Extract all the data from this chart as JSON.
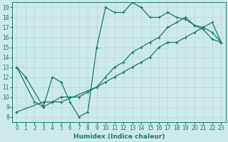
{
  "background_color": "#cdeaea",
  "grid_color": "#b0d8d8",
  "line_color": "#1a7a6a",
  "xlim": [
    -0.5,
    23.5
  ],
  "ylim": [
    7.5,
    19.5
  ],
  "xlabel": "Humidex (Indice chaleur)",
  "xticks": [
    0,
    1,
    2,
    3,
    4,
    5,
    6,
    7,
    8,
    9,
    10,
    11,
    12,
    13,
    14,
    15,
    16,
    17,
    18,
    19,
    20,
    21,
    22,
    23
  ],
  "yticks": [
    8,
    9,
    10,
    11,
    12,
    13,
    14,
    15,
    16,
    17,
    18,
    19
  ],
  "line1_x": [
    0,
    1,
    3,
    4,
    5,
    6,
    7,
    8,
    9,
    10,
    11,
    12,
    13,
    14,
    15,
    16,
    17,
    18,
    19,
    20,
    21,
    22,
    23
  ],
  "line1_y": [
    13,
    12,
    9,
    12,
    11.5,
    9.5,
    8,
    8.5,
    15,
    19,
    18.5,
    18.5,
    19.5,
    19,
    18,
    18,
    18.5,
    18,
    17.8,
    17.2,
    17,
    16.5,
    15.5
  ],
  "line2_x": [
    0,
    2,
    3,
    4,
    5,
    9,
    10,
    11,
    12,
    13,
    14,
    15,
    16,
    17,
    18,
    19,
    20,
    21,
    22,
    23
  ],
  "line2_y": [
    13,
    9.5,
    9,
    9.5,
    9.5,
    11,
    12,
    13,
    13.5,
    14.5,
    15,
    15.5,
    16,
    17,
    17.5,
    18,
    17.2,
    16.8,
    15.8,
    15.5
  ],
  "line3_x": [
    0,
    3,
    4,
    5,
    6,
    7,
    8,
    9,
    10,
    11,
    12,
    13,
    14,
    15,
    16,
    17,
    18,
    19,
    20,
    21,
    22,
    23
  ],
  "line3_y": [
    8.5,
    9.5,
    9.5,
    10,
    10,
    10,
    10.5,
    11,
    11.5,
    12,
    12.5,
    13,
    13.5,
    14,
    15,
    15.5,
    15.5,
    16,
    16.5,
    17,
    17.5,
    15.5
  ],
  "marker_size": 2,
  "linewidth": 0.9,
  "tick_fontsize": 5.5,
  "label_fontsize": 6.5
}
